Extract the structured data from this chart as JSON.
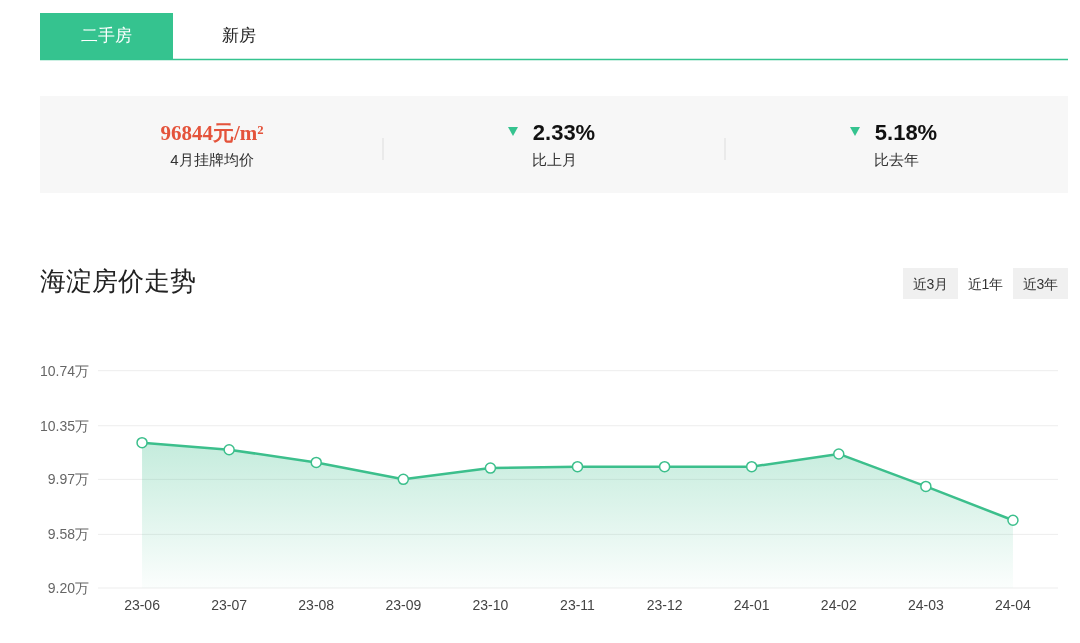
{
  "chart_data": [
    {
      "type": "other",
      "annotations": [
        "二手房",
        "新房",
        "96844元/m²",
        "4月挂牌均价",
        "2.33%",
        "比上月",
        "5.18%",
        "比去年"
      ]
    },
    {
      "type": "area",
      "title": "海淀房价走势",
      "annotations": [
        "近3月",
        "近1年",
        "近3年"
      ],
      "categories": [
        "23-06",
        "23-07",
        "23-08",
        "23-09",
        "23-10",
        "23-11",
        "23-12",
        "24-01",
        "24-02",
        "24-03",
        "24-04"
      ],
      "series": [
        {
          "color": "#3cbf8c",
          "values": [
            10.23,
            10.18,
            10.09,
            9.97,
            10.05,
            10.06,
            10.06,
            10.06,
            10.15,
            9.92,
            9.68
          ]
        }
      ],
      "ylim": [
        9.2,
        10.74
      ],
      "yticks": [
        {
          "value": 9.2,
          "label": "9.20万"
        },
        {
          "value": 9.58,
          "label": "9.58万"
        },
        {
          "value": 9.97,
          "label": "9.97万"
        },
        {
          "value": 10.35,
          "label": "10.35万"
        },
        {
          "value": 10.74,
          "label": "10.74万"
        }
      ],
      "grid": "y",
      "marker": "circle"
    }
  ]
}
